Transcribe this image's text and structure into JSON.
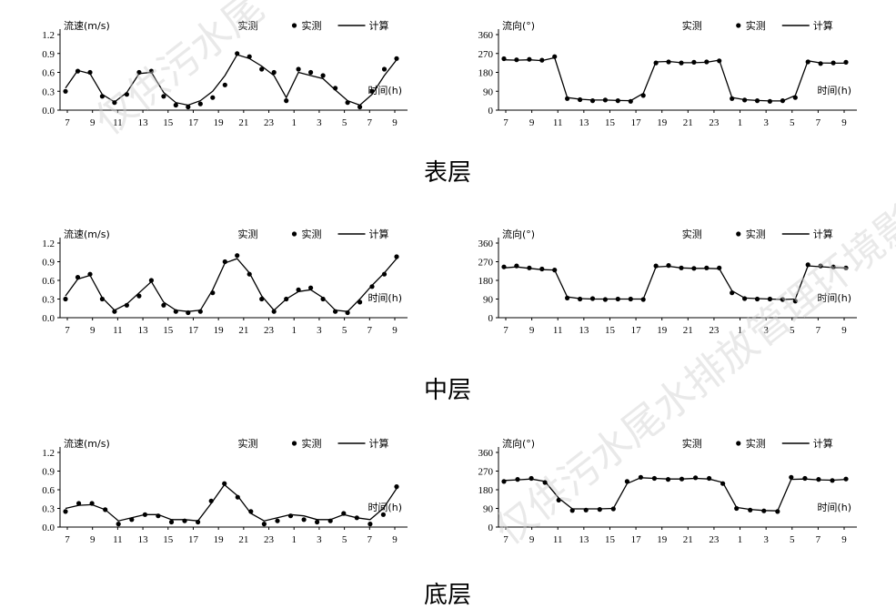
{
  "captions": [
    "表层",
    "中层",
    "底层"
  ],
  "watermark": "仅供污水尾水排放管理环境影",
  "chart_data": [
    {
      "type": "line",
      "layer": "表层",
      "quantity": "speed",
      "ylabel": "流速(m/s)",
      "ylim": [
        0,
        1.2
      ],
      "yticks": [
        "0.0",
        "0.3",
        "0.6",
        "0.9",
        "1.2"
      ],
      "xticks": [
        "7",
        "9",
        "11",
        "13",
        "15",
        "17",
        "19",
        "21",
        "23",
        "1",
        "3",
        "5",
        "7",
        "9"
      ],
      "legend": [
        "实测",
        "计算"
      ],
      "unit": "时间(h)",
      "observed": [
        0.3,
        0.62,
        0.6,
        0.22,
        0.12,
        0.25,
        0.6,
        0.62,
        0.22,
        0.08,
        0.05,
        0.1,
        0.2,
        0.4,
        0.9,
        0.85,
        0.65,
        0.6,
        0.15,
        0.65,
        0.6,
        0.55,
        0.35,
        0.12,
        0.05,
        0.3,
        0.65,
        0.82
      ],
      "computed": [
        0.35,
        0.63,
        0.58,
        0.25,
        0.13,
        0.28,
        0.58,
        0.6,
        0.28,
        0.12,
        0.08,
        0.15,
        0.3,
        0.55,
        0.88,
        0.82,
        0.7,
        0.55,
        0.2,
        0.6,
        0.55,
        0.5,
        0.32,
        0.15,
        0.08,
        0.25,
        0.55,
        0.8
      ]
    },
    {
      "type": "line",
      "layer": "表层",
      "quantity": "direction",
      "ylabel": "流向(°)",
      "ylim": [
        0,
        360
      ],
      "yticks": [
        "0",
        "90",
        "180",
        "270",
        "360"
      ],
      "xticks": [
        "7",
        "9",
        "11",
        "13",
        "15",
        "17",
        "19",
        "21",
        "23",
        "1",
        "3",
        "5",
        "7",
        "9"
      ],
      "legend": [
        "实测",
        "计算"
      ],
      "unit": "时间(h)",
      "observed": [
        245,
        240,
        242,
        238,
        255,
        55,
        50,
        45,
        48,
        45,
        42,
        70,
        225,
        230,
        225,
        228,
        230,
        235,
        55,
        48,
        45,
        42,
        45,
        60,
        230,
        222,
        225,
        228
      ],
      "computed": [
        240,
        238,
        240,
        236,
        250,
        60,
        52,
        48,
        48,
        46,
        45,
        80,
        230,
        232,
        226,
        226,
        228,
        238,
        60,
        50,
        46,
        44,
        44,
        70,
        235,
        225,
        224,
        224
      ]
    },
    {
      "type": "line",
      "layer": "中层",
      "quantity": "speed",
      "ylabel": "流速(m/s)",
      "ylim": [
        0,
        1.2
      ],
      "yticks": [
        "0.0",
        "0.3",
        "0.6",
        "0.9",
        "1.2"
      ],
      "xticks": [
        "7",
        "9",
        "11",
        "13",
        "15",
        "17",
        "19",
        "21",
        "23",
        "1",
        "3",
        "5",
        "7",
        "9"
      ],
      "legend": [
        "实测",
        "计算"
      ],
      "unit": "时间(h)",
      "observed": [
        0.3,
        0.65,
        0.7,
        0.3,
        0.1,
        0.2,
        0.35,
        0.6,
        0.2,
        0.1,
        0.08,
        0.1,
        0.4,
        0.9,
        1.0,
        0.7,
        0.3,
        0.1,
        0.3,
        0.45,
        0.48,
        0.3,
        0.1,
        0.08,
        0.25,
        0.5,
        0.7,
        0.98
      ],
      "computed": [
        0.35,
        0.62,
        0.68,
        0.32,
        0.12,
        0.22,
        0.4,
        0.58,
        0.25,
        0.12,
        0.1,
        0.12,
        0.45,
        0.88,
        0.95,
        0.72,
        0.35,
        0.12,
        0.3,
        0.42,
        0.45,
        0.32,
        0.12,
        0.1,
        0.3,
        0.52,
        0.72,
        0.95
      ]
    },
    {
      "type": "line",
      "layer": "中层",
      "quantity": "direction",
      "ylabel": "流向(°)",
      "ylim": [
        0,
        360
      ],
      "yticks": [
        "0",
        "90",
        "180",
        "270",
        "360"
      ],
      "xticks": [
        "7",
        "9",
        "11",
        "13",
        "15",
        "17",
        "19",
        "21",
        "23",
        "1",
        "3",
        "5",
        "7",
        "9"
      ],
      "legend": [
        "实测",
        "计算"
      ],
      "unit": "时间(h)",
      "observed": [
        245,
        250,
        240,
        235,
        230,
        95,
        90,
        92,
        88,
        90,
        90,
        88,
        250,
        252,
        240,
        238,
        240,
        240,
        120,
        92,
        90,
        90,
        88,
        80,
        255,
        250,
        245,
        240
      ],
      "computed": [
        240,
        245,
        238,
        232,
        230,
        100,
        92,
        90,
        90,
        90,
        90,
        90,
        245,
        248,
        240,
        238,
        238,
        236,
        130,
        95,
        92,
        90,
        88,
        90,
        250,
        246,
        242,
        240
      ]
    },
    {
      "type": "line",
      "layer": "底层",
      "quantity": "speed",
      "ylabel": "流速(m/s)",
      "ylim": [
        0,
        1.2
      ],
      "yticks": [
        "0.0",
        "0.3",
        "0.6",
        "0.9",
        "1.2"
      ],
      "xticks": [
        "7",
        "9",
        "11",
        "13",
        "15",
        "17",
        "19",
        "21",
        "23",
        "1",
        "3",
        "5",
        "7",
        "9"
      ],
      "legend": [
        "实测",
        "计算"
      ],
      "unit": "时间(h)",
      "observed": [
        0.25,
        0.38,
        0.38,
        0.28,
        0.05,
        0.12,
        0.2,
        0.18,
        0.08,
        0.1,
        0.08,
        0.42,
        0.7,
        0.48,
        0.25,
        0.05,
        0.1,
        0.18,
        0.12,
        0.08,
        0.1,
        0.22,
        0.15,
        0.05,
        0.2,
        0.65
      ],
      "computed": [
        0.3,
        0.35,
        0.36,
        0.28,
        0.1,
        0.15,
        0.2,
        0.2,
        0.12,
        0.12,
        0.1,
        0.38,
        0.68,
        0.5,
        0.22,
        0.1,
        0.15,
        0.2,
        0.18,
        0.12,
        0.12,
        0.2,
        0.15,
        0.12,
        0.3,
        0.62
      ]
    },
    {
      "type": "line",
      "layer": "底层",
      "quantity": "direction",
      "ylabel": "流向(°)",
      "ylim": [
        0,
        360
      ],
      "yticks": [
        "0",
        "90",
        "180",
        "270",
        "360"
      ],
      "xticks": [
        "7",
        "9",
        "11",
        "13",
        "15",
        "17",
        "19",
        "21",
        "23",
        "1",
        "3",
        "5",
        "7",
        "9"
      ],
      "legend": [
        "实测",
        "计算"
      ],
      "unit": "时间(h)",
      "observed": [
        220,
        230,
        235,
        215,
        130,
        80,
        82,
        85,
        88,
        220,
        240,
        235,
        230,
        232,
        238,
        235,
        210,
        90,
        82,
        78,
        75,
        240,
        235,
        230,
        225,
        232
      ],
      "computed": [
        225,
        228,
        232,
        220,
        140,
        88,
        88,
        88,
        90,
        210,
        238,
        235,
        232,
        232,
        235,
        232,
        215,
        95,
        85,
        80,
        78,
        230,
        232,
        228,
        226,
        230
      ]
    }
  ]
}
